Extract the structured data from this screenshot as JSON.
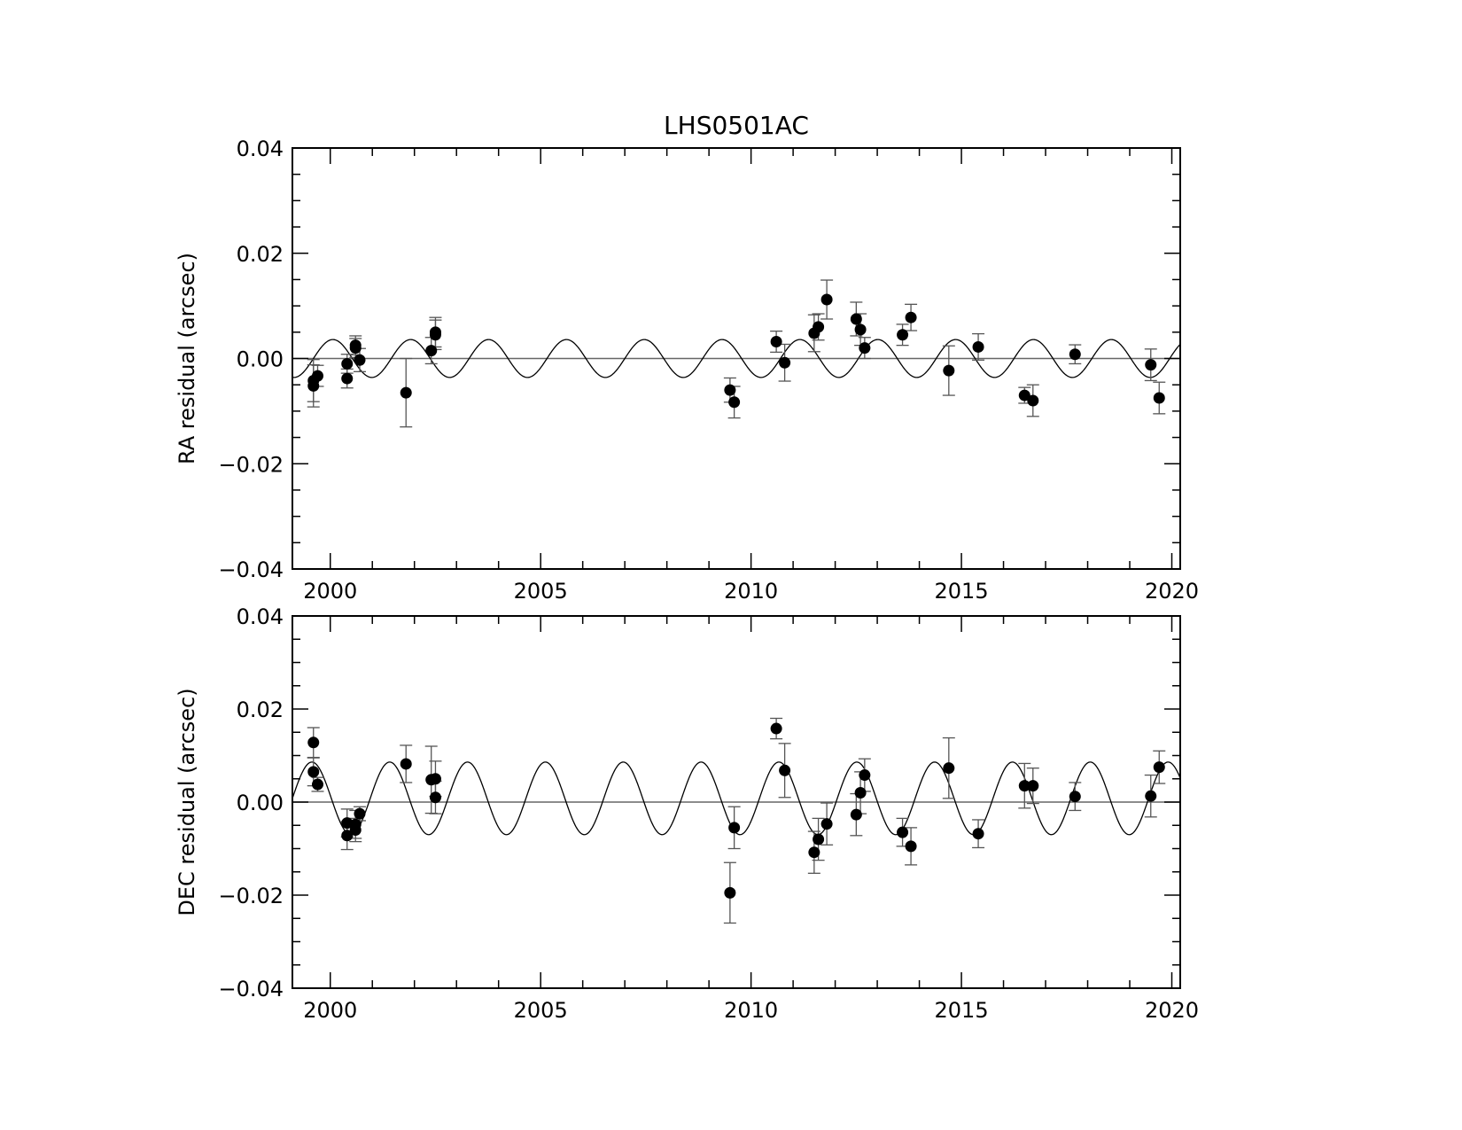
{
  "chart_data": [
    {
      "type": "scatter",
      "title": "LHS0501AC",
      "xlabel": "",
      "ylabel": "RA residual (arcsec)",
      "xlim": [
        1999.1,
        2020.2
      ],
      "ylim": [
        -0.04,
        0.04
      ],
      "xticks": [
        "2000",
        "2005",
        "2010",
        "2015",
        "2020"
      ],
      "yticks": [
        "−0.04",
        "−0.02",
        "0.00",
        "0.02",
        "0.04"
      ],
      "grid": false,
      "zero_line": true,
      "model": {
        "amplitude": 0.0036,
        "period_years": 1.85,
        "phase_years": 1999.6
      },
      "points": [
        {
          "x": 1999.6,
          "y": -0.0052,
          "err": 0.004
        },
        {
          "x": 1999.6,
          "y": -0.0042,
          "err": 0.004
        },
        {
          "x": 1999.7,
          "y": -0.0033,
          "err": 0.002
        },
        {
          "x": 2000.4,
          "y": -0.0038,
          "err": 0.0018
        },
        {
          "x": 2000.4,
          "y": -0.001,
          "err": 0.0018
        },
        {
          "x": 2000.6,
          "y": 0.0025,
          "err": 0.0018
        },
        {
          "x": 2000.6,
          "y": 0.002,
          "err": 0.0018
        },
        {
          "x": 2000.7,
          "y": -0.0003,
          "err": 0.0022
        },
        {
          "x": 2001.8,
          "y": -0.0065,
          "err": 0.0065
        },
        {
          "x": 2002.4,
          "y": 0.0015,
          "err": 0.0025
        },
        {
          "x": 2002.5,
          "y": 0.005,
          "err": 0.0028
        },
        {
          "x": 2002.5,
          "y": 0.0045,
          "err": 0.0028
        },
        {
          "x": 2009.5,
          "y": -0.006,
          "err": 0.0023
        },
        {
          "x": 2009.6,
          "y": -0.0083,
          "err": 0.003
        },
        {
          "x": 2010.6,
          "y": 0.0032,
          "err": 0.002
        },
        {
          "x": 2010.8,
          "y": -0.0008,
          "err": 0.0035
        },
        {
          "x": 2011.5,
          "y": 0.0048,
          "err": 0.0035
        },
        {
          "x": 2011.6,
          "y": 0.006,
          "err": 0.0025
        },
        {
          "x": 2011.8,
          "y": 0.0112,
          "err": 0.0037
        },
        {
          "x": 2012.5,
          "y": 0.0075,
          "err": 0.0032
        },
        {
          "x": 2012.6,
          "y": 0.0055,
          "err": 0.003
        },
        {
          "x": 2012.7,
          "y": 0.002,
          "err": 0.002
        },
        {
          "x": 2013.6,
          "y": 0.0045,
          "err": 0.002
        },
        {
          "x": 2013.8,
          "y": 0.0078,
          "err": 0.0025
        },
        {
          "x": 2014.7,
          "y": -0.0023,
          "err": 0.0047
        },
        {
          "x": 2015.4,
          "y": 0.0022,
          "err": 0.0025
        },
        {
          "x": 2016.5,
          "y": -0.007,
          "err": 0.0015
        },
        {
          "x": 2016.7,
          "y": -0.008,
          "err": 0.003
        },
        {
          "x": 2017.7,
          "y": 0.0008,
          "err": 0.0018
        },
        {
          "x": 2019.5,
          "y": -0.0012,
          "err": 0.003
        },
        {
          "x": 2019.7,
          "y": -0.0075,
          "err": 0.003
        }
      ]
    },
    {
      "type": "scatter",
      "title": "",
      "xlabel": "",
      "ylabel": "DEC residual (arcsec)",
      "xlim": [
        1999.1,
        2020.2
      ],
      "ylim": [
        -0.04,
        0.04
      ],
      "xticks": [
        "2000",
        "2005",
        "2010",
        "2015",
        "2020"
      ],
      "yticks": [
        "−0.04",
        "−0.02",
        "0.00",
        "0.02",
        "0.04"
      ],
      "grid": false,
      "zero_line": true,
      "model": {
        "amplitude": 0.0078,
        "period_years": 1.85,
        "phase_years": 1999.1,
        "offset": 0.0008
      },
      "points": [
        {
          "x": 1999.6,
          "y": 0.0128,
          "err": 0.0032
        },
        {
          "x": 1999.6,
          "y": 0.0065,
          "err": 0.003
        },
        {
          "x": 1999.7,
          "y": 0.0038,
          "err": 0.0015
        },
        {
          "x": 2000.4,
          "y": -0.0045,
          "err": 0.003
        },
        {
          "x": 2000.4,
          "y": -0.0072,
          "err": 0.003
        },
        {
          "x": 2000.6,
          "y": -0.0048,
          "err": 0.003
        },
        {
          "x": 2000.6,
          "y": -0.006,
          "err": 0.0025
        },
        {
          "x": 2000.7,
          "y": -0.0025,
          "err": 0.0015
        },
        {
          "x": 2001.8,
          "y": 0.0082,
          "err": 0.004
        },
        {
          "x": 2002.4,
          "y": 0.0048,
          "err": 0.0072
        },
        {
          "x": 2002.5,
          "y": 0.005,
          "err": 0.0038
        },
        {
          "x": 2002.5,
          "y": 0.001,
          "err": 0.0035
        },
        {
          "x": 2009.5,
          "y": -0.0195,
          "err": 0.0065
        },
        {
          "x": 2009.6,
          "y": -0.0055,
          "err": 0.0045
        },
        {
          "x": 2010.6,
          "y": 0.0158,
          "err": 0.0022
        },
        {
          "x": 2010.8,
          "y": 0.0068,
          "err": 0.0058
        },
        {
          "x": 2011.5,
          "y": -0.0108,
          "err": 0.0045
        },
        {
          "x": 2011.6,
          "y": -0.008,
          "err": 0.0045
        },
        {
          "x": 2011.8,
          "y": -0.0047,
          "err": 0.0045
        },
        {
          "x": 2012.5,
          "y": -0.0027,
          "err": 0.0045
        },
        {
          "x": 2012.6,
          "y": 0.002,
          "err": 0.0045
        },
        {
          "x": 2012.7,
          "y": 0.0058,
          "err": 0.0035
        },
        {
          "x": 2013.6,
          "y": -0.0065,
          "err": 0.003
        },
        {
          "x": 2013.8,
          "y": -0.0095,
          "err": 0.004
        },
        {
          "x": 2014.7,
          "y": 0.0073,
          "err": 0.0065
        },
        {
          "x": 2015.4,
          "y": -0.0068,
          "err": 0.003
        },
        {
          "x": 2016.5,
          "y": 0.0035,
          "err": 0.0048
        },
        {
          "x": 2016.7,
          "y": 0.0035,
          "err": 0.0038
        },
        {
          "x": 2017.7,
          "y": 0.0012,
          "err": 0.003
        },
        {
          "x": 2019.5,
          "y": 0.0013,
          "err": 0.0045
        },
        {
          "x": 2019.7,
          "y": 0.0075,
          "err": 0.0035
        }
      ]
    }
  ]
}
